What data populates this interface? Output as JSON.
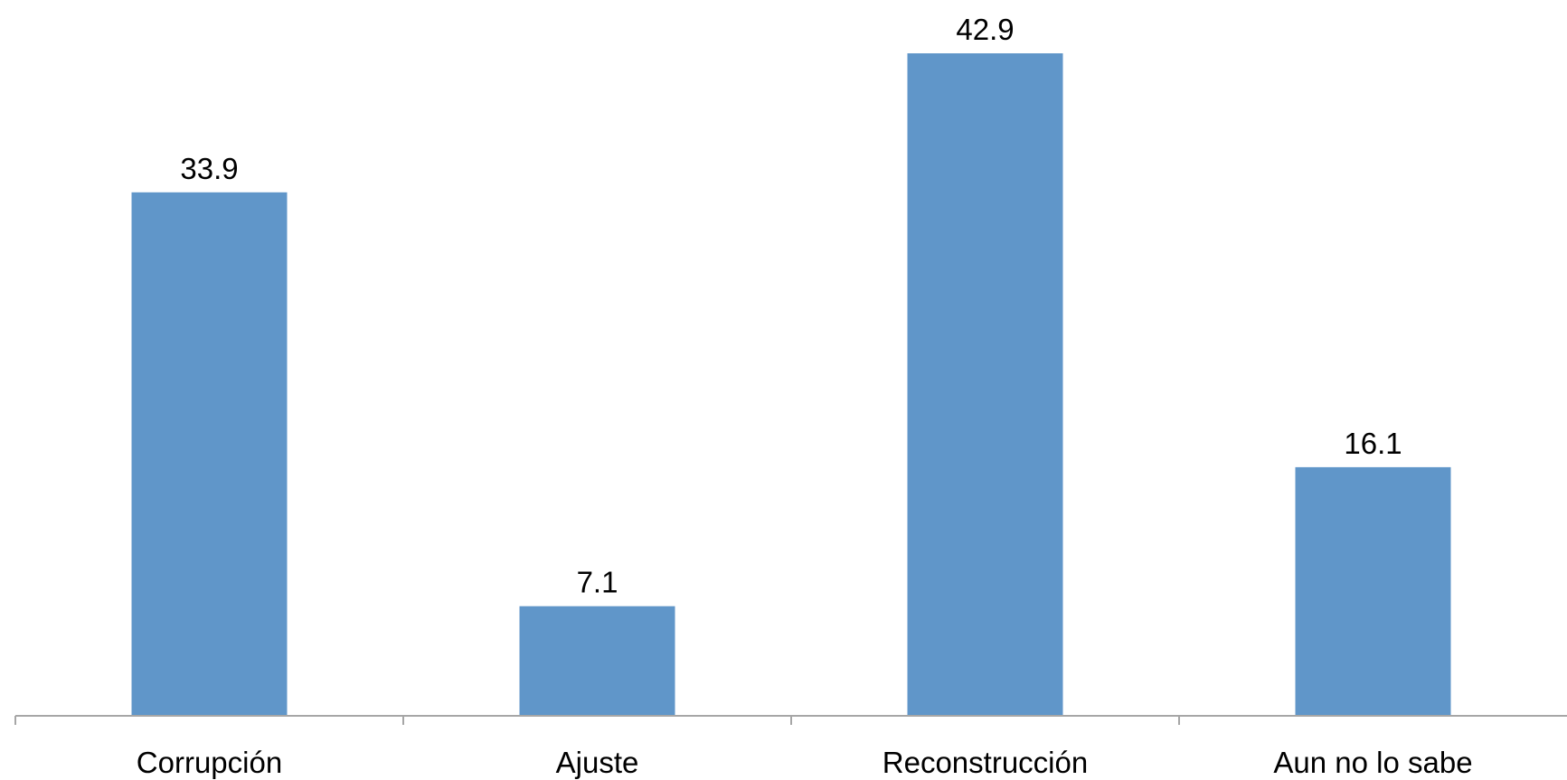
{
  "chart_data": {
    "type": "bar",
    "categories": [
      "Corrupción",
      "Ajuste",
      "Reconstrucción",
      "Aun no lo sabe"
    ],
    "values": [
      33.9,
      7.1,
      42.9,
      16.1
    ],
    "value_labels": [
      "33.9",
      "7.1",
      "42.9",
      "16.1"
    ],
    "title": "",
    "xlabel": "",
    "ylabel": "",
    "ylim": [
      0,
      42.9
    ],
    "grid": false,
    "legend": "none",
    "bar_color": "#6096C9",
    "axis_color": "#A6A6A6"
  }
}
